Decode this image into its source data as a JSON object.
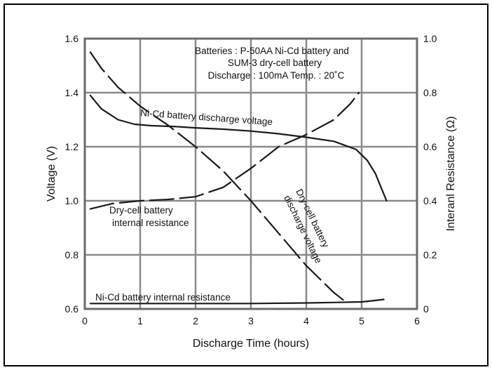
{
  "chart_data": {
    "type": "line",
    "title": "",
    "xlabel": "Discharge Time (hours)",
    "ylabel": "Voltage (V)",
    "y2label": "Interanl Resistance (Ω)",
    "xlim": [
      0,
      6
    ],
    "ylim": [
      0.6,
      1.6
    ],
    "y2lim": [
      0,
      1.0
    ],
    "grid": true,
    "x_ticks": [
      "0",
      "1",
      "2",
      "3",
      "4",
      "5",
      "6"
    ],
    "y_ticks": [
      "0.6",
      "0.8",
      "1.0",
      "1.2",
      "1.4",
      "1.6"
    ],
    "y2_ticks": [
      "0",
      "0.2",
      "0.4",
      "0.6",
      "0.8",
      "1.0"
    ],
    "info_lines": [
      "Batteries : P-50AA Ni-Cd battery and",
      "SUM-3 dry-cell battery",
      "Discharge : 100mA  Temp. : 20˚C"
    ],
    "series": [
      {
        "name": "Ni-Cd battery discharge voltage",
        "axis": "left",
        "style": "solid",
        "x": [
          0.1,
          0.3,
          0.6,
          0.9,
          1.2,
          1.6,
          2.0,
          2.5,
          3.0,
          3.5,
          4.0,
          4.5,
          4.9,
          5.1,
          5.25,
          5.35,
          5.42,
          5.45
        ],
        "y": [
          1.39,
          1.34,
          1.3,
          1.283,
          1.278,
          1.275,
          1.27,
          1.265,
          1.258,
          1.248,
          1.235,
          1.22,
          1.19,
          1.15,
          1.1,
          1.05,
          1.015,
          1.0
        ]
      },
      {
        "name": "Dry-cell battery discharge voltage",
        "axis": "left",
        "style": "dashed",
        "x": [
          0.1,
          0.3,
          0.6,
          1.0,
          1.5,
          2.0,
          2.5,
          3.0,
          3.5,
          4.0,
          4.5,
          4.75
        ],
        "y": [
          1.55,
          1.49,
          1.42,
          1.35,
          1.28,
          1.2,
          1.11,
          1.0,
          0.88,
          0.76,
          0.66,
          0.62
        ]
      },
      {
        "name": "Dry-cell battery internal resistance",
        "axis": "right",
        "style": "dashed",
        "x": [
          0.1,
          0.5,
          1.0,
          1.5,
          2.0,
          2.5,
          3.0,
          3.5,
          4.0,
          4.5,
          4.8,
          4.95
        ],
        "y": [
          0.37,
          0.39,
          0.4,
          0.405,
          0.415,
          0.45,
          0.52,
          0.6,
          0.645,
          0.7,
          0.76,
          0.8
        ]
      },
      {
        "name": "Ni-Cd battery internal resistance",
        "axis": "right",
        "style": "solid",
        "x": [
          0.1,
          1.0,
          2.0,
          3.0,
          4.0,
          4.5,
          5.0,
          5.2,
          5.4
        ],
        "y": [
          0.02,
          0.02,
          0.02,
          0.02,
          0.022,
          0.024,
          0.026,
          0.03,
          0.035
        ]
      }
    ],
    "annotations": [
      {
        "text": "Ni-Cd battery discharge voltage",
        "rotate": 4
      },
      {
        "text": "Dry-cell battery",
        "rotate": 0
      },
      {
        "text": "internal resistance",
        "rotate": 0
      },
      {
        "text": "Dry-cell battery",
        "rotate": 64
      },
      {
        "text": "discharge voltage",
        "rotate": 64
      },
      {
        "text": "Ni-Cd battery internal resistance",
        "rotate": 0
      }
    ]
  }
}
